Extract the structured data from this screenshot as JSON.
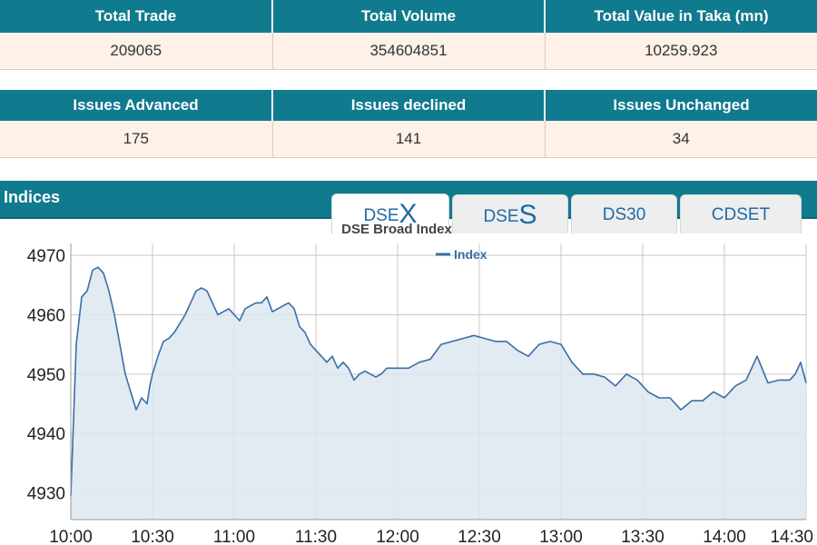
{
  "summary": {
    "headers": [
      "Total Trade",
      "Total Volume",
      "Total Value in Taka (mn)"
    ],
    "values": [
      "209065",
      "354604851",
      "10259.923"
    ]
  },
  "issues": {
    "headers": [
      "Issues Advanced",
      "Issues declined",
      "Issues Unchanged"
    ],
    "values": [
      "175",
      "141",
      "34"
    ]
  },
  "indices": {
    "title": "Indices",
    "tabs": [
      {
        "prefix": "DSE",
        "suffix": "X",
        "active": true
      },
      {
        "prefix": "DSE",
        "suffix": "S",
        "active": false
      },
      {
        "prefix": "DS30",
        "suffix": "",
        "active": false
      },
      {
        "prefix": "CDSET",
        "suffix": "",
        "active": false
      }
    ]
  },
  "colors": {
    "header_bg": "#107a8e",
    "row_bg": "#fdf1e8",
    "line": "#3b6ea5",
    "area": "#dde6f0"
  },
  "chart_data": {
    "type": "area",
    "title": "DSE Broad Index",
    "legend": {
      "label": "Index",
      "placement": "top-center"
    },
    "xlabel": "",
    "ylabel": "",
    "xlim": [
      "10:00",
      "14:30"
    ],
    "ylim": [
      4925.5,
      4972
    ],
    "x_ticks": [
      "10:00",
      "10:30",
      "11:00",
      "11:30",
      "12:00",
      "12:30",
      "13:00",
      "13:30",
      "14:00",
      "14:30"
    ],
    "y_ticks": [
      4930,
      4940,
      4950,
      4960,
      4970
    ],
    "grid": true,
    "series": [
      {
        "name": "Index",
        "x": [
          "10:00",
          "10:02",
          "10:04",
          "10:06",
          "10:08",
          "10:10",
          "10:12",
          "10:14",
          "10:16",
          "10:18",
          "10:20",
          "10:22",
          "10:24",
          "10:26",
          "10:28",
          "10:29",
          "10:30",
          "10:32",
          "10:34",
          "10:36",
          "10:38",
          "10:40",
          "10:42",
          "10:44",
          "10:46",
          "10:48",
          "10:50",
          "10:52",
          "10:54",
          "10:56",
          "10:58",
          "11:00",
          "11:02",
          "11:04",
          "11:06",
          "11:08",
          "11:10",
          "11:12",
          "11:14",
          "11:16",
          "11:18",
          "11:20",
          "11:22",
          "11:24",
          "11:26",
          "11:28",
          "11:30",
          "11:32",
          "11:34",
          "11:36",
          "11:38",
          "11:40",
          "11:42",
          "11:44",
          "11:46",
          "11:48",
          "11:50",
          "11:52",
          "11:54",
          "11:56",
          "11:58",
          "12:00",
          "12:04",
          "12:08",
          "12:12",
          "12:16",
          "12:20",
          "12:24",
          "12:28",
          "12:32",
          "12:36",
          "12:40",
          "12:44",
          "12:48",
          "12:52",
          "12:56",
          "13:00",
          "13:04",
          "13:08",
          "13:12",
          "13:16",
          "13:20",
          "13:24",
          "13:28",
          "13:32",
          "13:36",
          "13:40",
          "13:44",
          "13:48",
          "13:52",
          "13:56",
          "14:00",
          "14:04",
          "14:08",
          "14:12",
          "14:16",
          "14:20",
          "14:24",
          "14:26",
          "14:28",
          "14:30"
        ],
        "values": [
          4929.5,
          4955,
          4963,
          4964,
          4967.5,
          4968,
          4967,
          4964,
          4960,
          4955,
          4950,
          4947,
          4944,
          4946,
          4945,
          4948,
          4950,
          4953,
          4955.5,
          4956,
          4957,
          4958.5,
          4960,
          4962,
          4964,
          4964.5,
          4964,
          4962,
          4960,
          4960.5,
          4961,
          4960,
          4959,
          4961,
          4961.5,
          4962,
          4962,
          4963,
          4960.5,
          4961,
          4961.5,
          4962,
          4961,
          4958,
          4957,
          4955,
          4954,
          4953,
          4952,
          4953,
          4951,
          4952,
          4951,
          4949,
          4950,
          4950.5,
          4950,
          4949.5,
          4950,
          4951,
          4951,
          4951,
          4951,
          4952,
          4952.5,
          4955,
          4955.5,
          4956,
          4956.5,
          4956,
          4955.5,
          4955.5,
          4954,
          4953,
          4955,
          4955.5,
          4955,
          4952,
          4950,
          4950,
          4949.5,
          4948,
          4950,
          4949,
          4947,
          4946,
          4946,
          4944,
          4945.5,
          4945.5,
          4947,
          4946,
          4948,
          4949,
          4953,
          4948.5,
          4949,
          4949,
          4950,
          4952,
          4948.5
        ]
      }
    ]
  }
}
